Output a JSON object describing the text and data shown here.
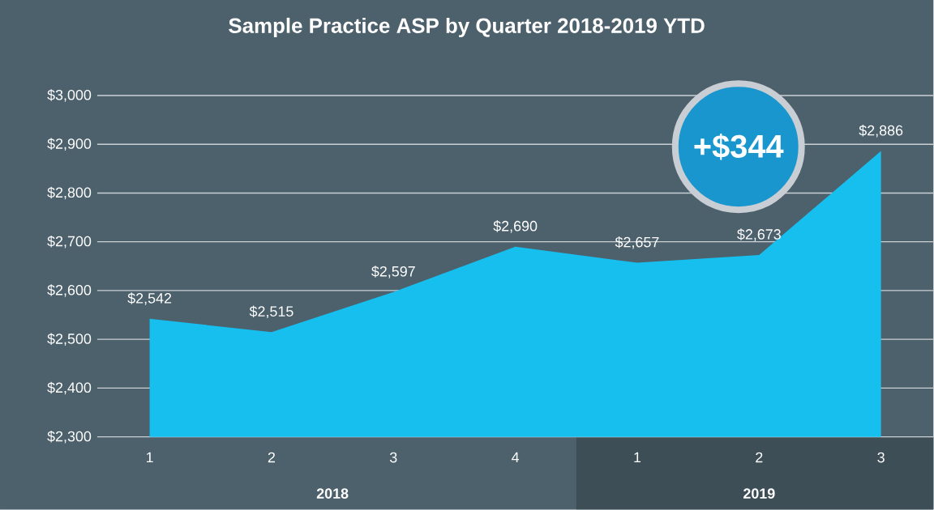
{
  "chart_data": {
    "type": "area",
    "title": "Sample Practice ASP by Quarter 2018-2019 YTD",
    "categories": [
      "1",
      "2",
      "3",
      "4",
      "1",
      "2",
      "3"
    ],
    "values": [
      2542,
      2515,
      2597,
      2690,
      2657,
      2673,
      2886
    ],
    "value_labels": [
      "$2,542",
      "$2,515",
      "$2,597",
      "$2,690",
      "$2,657",
      "$2,673",
      "$2,886"
    ],
    "color": "#17bfef",
    "ylim": [
      2300,
      3000
    ],
    "yticks": [
      {
        "value": 2300,
        "label": "$2,300"
      },
      {
        "value": 2400,
        "label": "$2,400"
      },
      {
        "value": 2500,
        "label": "$2,500"
      },
      {
        "value": 2600,
        "label": "$2,600"
      },
      {
        "value": 2700,
        "label": "$2,700"
      },
      {
        "value": 2800,
        "label": "$2,800"
      },
      {
        "value": 2900,
        "label": "$2,900"
      },
      {
        "value": 3000,
        "label": "$3,000"
      }
    ],
    "grid": "y",
    "annotations": [
      "2018",
      "2019",
      "+$344"
    ]
  }
}
